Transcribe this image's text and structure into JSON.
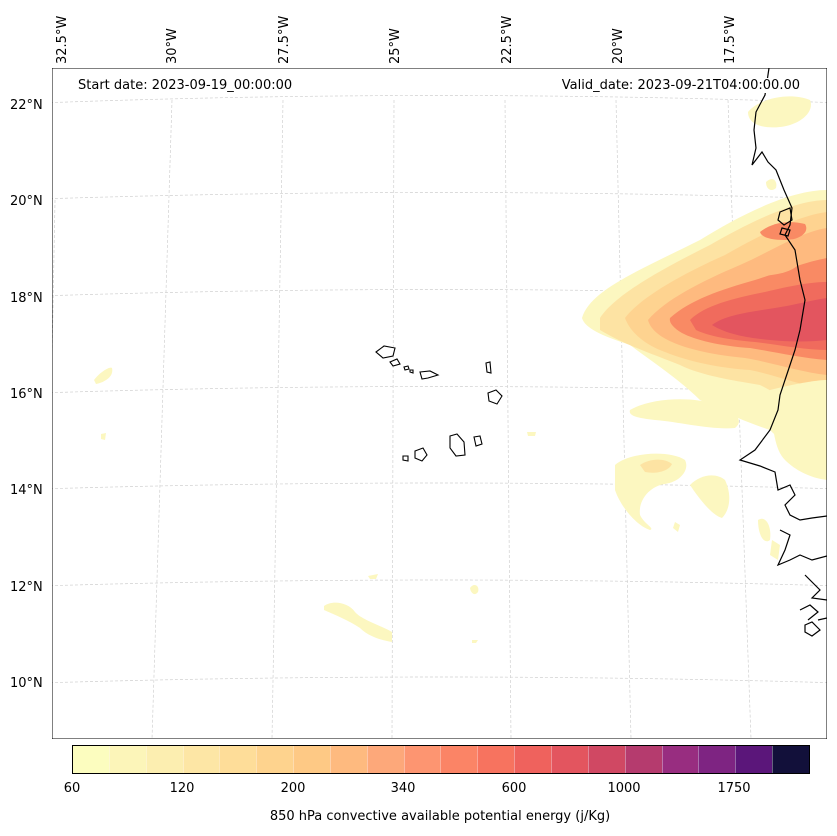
{
  "map": {
    "start_date": "Start date: 2023-09-19_00:00:00",
    "valid_date": "Valid_date: 2023-09-21T04:00:00.00",
    "lon_labels": [
      "32.5°W",
      "30°W",
      "27.5°W",
      "25°W",
      "22.5°W",
      "20°W",
      "17.5°W"
    ],
    "lat_labels": [
      "22°N",
      "20°N",
      "18°N",
      "16°N",
      "14°N",
      "12°N",
      "10°N"
    ],
    "field_colors": {
      "c60": "#fcf7c0",
      "c80": "#fbefb4",
      "c120": "#fde3a3",
      "c200": "#fed390",
      "c340": "#feba7f",
      "c600": "#f98a64",
      "c800": "#f06b5d",
      "c1000": "#e3555f"
    }
  },
  "colorbar": {
    "title": "850 hPa convective available potential energy (j/Kg)",
    "tick_labels": [
      "60",
      "120",
      "200",
      "340",
      "600",
      "1000",
      "1750"
    ],
    "colors": [
      "#fcfdbf",
      "#fcf5b9",
      "#fceeb0",
      "#fde6a5",
      "#fedd99",
      "#fed38e",
      "#fec985",
      "#feba7f",
      "#fda87a",
      "#fd9571",
      "#fb8466",
      "#f7735f",
      "#ef625d",
      "#e3555f",
      "#d04863",
      "#b53b6e",
      "#982d80",
      "#7e2482",
      "#5b167a",
      "#12103a"
    ]
  }
}
